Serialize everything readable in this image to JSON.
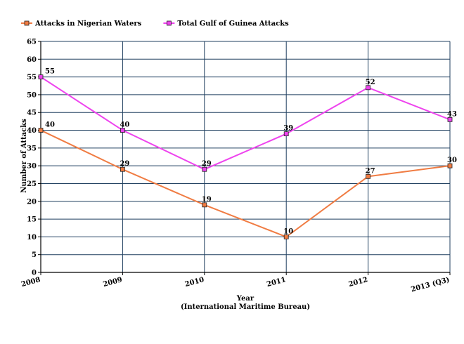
{
  "chart_data": {
    "type": "line",
    "categories": [
      "2008",
      "2009",
      "2010",
      "2011",
      "2012",
      "2013 (Q3)"
    ],
    "series": [
      {
        "name": "Attacks in Nigerian Waters",
        "values": [
          40,
          29,
          19,
          10,
          27,
          30
        ],
        "color": "#f07c43",
        "marker_fill": "#f07c43"
      },
      {
        "name": "Total Gulf of Guinea Attacks",
        "values": [
          55,
          40,
          29,
          39,
          52,
          43
        ],
        "color": "#ee44ee",
        "marker_fill": "#ee44ee"
      }
    ],
    "title": "",
    "xlabel": "Year",
    "xlabel_sub": "(International Maritime Bureau)",
    "ylabel": "Number of Attacks",
    "ylim": [
      0,
      65
    ],
    "yticks": [
      0,
      5,
      10,
      15,
      20,
      25,
      30,
      35,
      40,
      45,
      50,
      55,
      60,
      65
    ],
    "grid": true,
    "gridline_color": "#1f3f5f",
    "legend_position": "top-left",
    "data_labels": true
  }
}
